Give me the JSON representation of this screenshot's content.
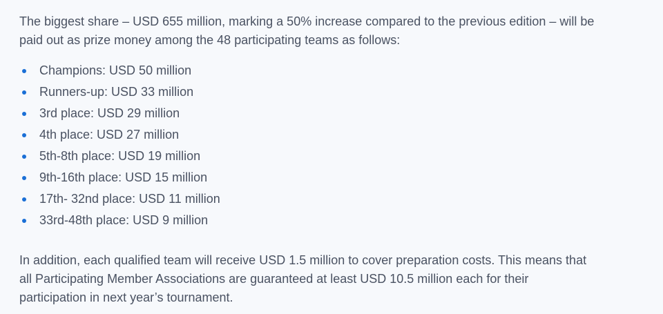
{
  "intro": {
    "lines": [
      "The biggest share – USD 655 million, marking a 50% increase compared to the previous edition – will be",
      "paid out as prize money among the 48 participating teams as follows:"
    ]
  },
  "prize_list": {
    "bullet_color": "#1a6fd6",
    "items": [
      "Champions: USD 50 million",
      "Runners-up: USD 33 million",
      "3rd place: USD 29 million",
      "4th place: USD 27 million",
      "5th-8th place: USD 19 million",
      "9th-16th place: USD 15 million",
      "17th- 32nd place: USD 11 million",
      "33rd-48th place: USD 9 million"
    ]
  },
  "addition": {
    "lines": [
      "In addition, each qualified team will receive USD 1.5 million to cover preparation costs. This means that",
      "all Participating Member Associations are guaranteed at least USD 10.5 million each for their",
      "participation in next year’s tournament."
    ]
  }
}
